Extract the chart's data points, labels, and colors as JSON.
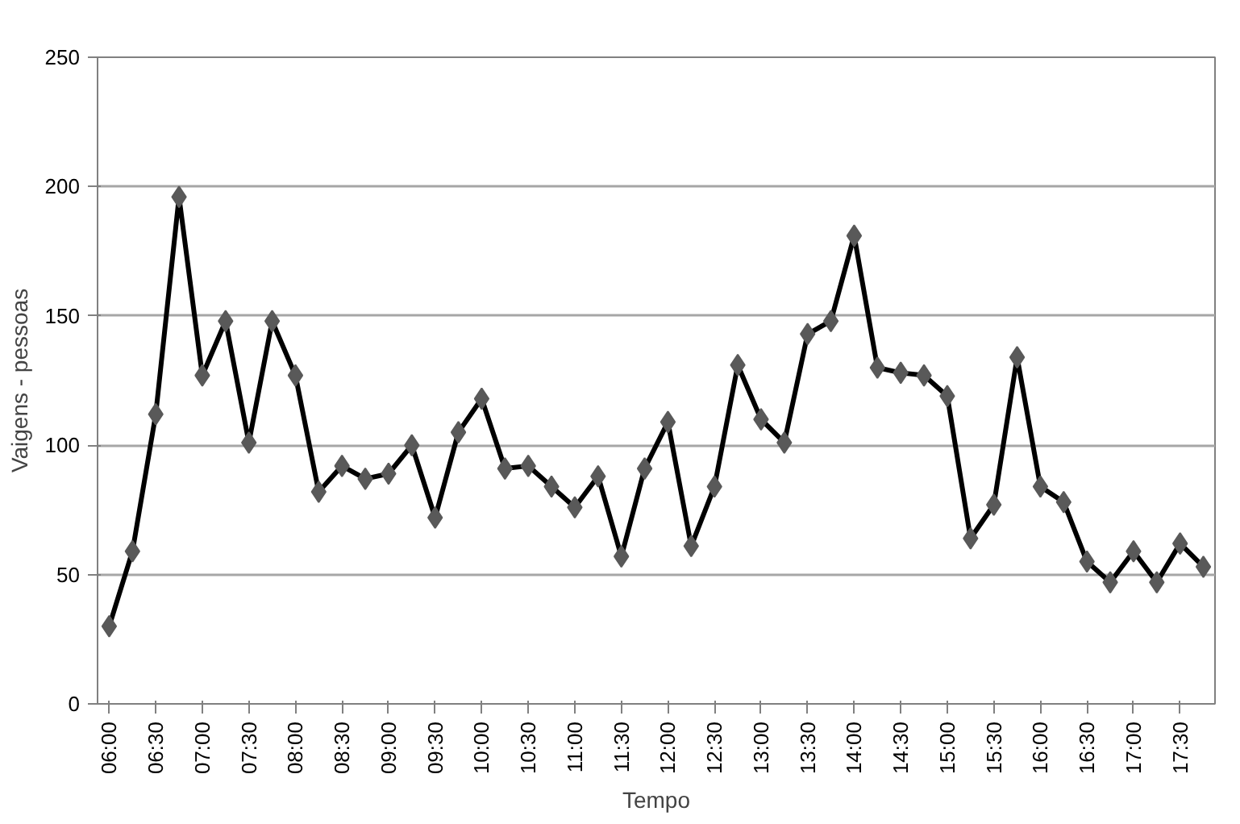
{
  "chart_data": {
    "type": "line",
    "xlabel": "Tempo",
    "ylabel": "Vaigens - pessoas",
    "categories": [
      "06:00",
      null,
      "06:30",
      null,
      "07:00",
      null,
      "07:30",
      null,
      "08:00",
      null,
      "08:30",
      null,
      "09:00",
      null,
      "09:30",
      null,
      "10:00",
      null,
      "10:30",
      null,
      "11:00",
      null,
      "11:30",
      null,
      "12:00",
      null,
      "12:30",
      null,
      "13:00",
      null,
      "13:30",
      null,
      "14:00",
      null,
      "14:30",
      null,
      "15:00",
      null,
      "15:30",
      null,
      "16:00",
      null,
      "16:30",
      null,
      "17:00",
      null,
      "17:30",
      null
    ],
    "series": [
      {
        "color": "#000000",
        "values": [
          30,
          59,
          112,
          196,
          127,
          148,
          101,
          148,
          127,
          82,
          92,
          87,
          89,
          100,
          72,
          105,
          118,
          91,
          92,
          84,
          76,
          88,
          57,
          91,
          109,
          61,
          84,
          131,
          110,
          101,
          143,
          148,
          181,
          130,
          128,
          127,
          119,
          64,
          77,
          134,
          84,
          78,
          55,
          47,
          59,
          47,
          62,
          53
        ]
      }
    ],
    "ylim": [
      0,
      250
    ],
    "yticks": [
      0,
      50,
      100,
      150,
      200,
      250
    ],
    "grid": "y",
    "marker": "diamond",
    "line_style": "solid"
  }
}
